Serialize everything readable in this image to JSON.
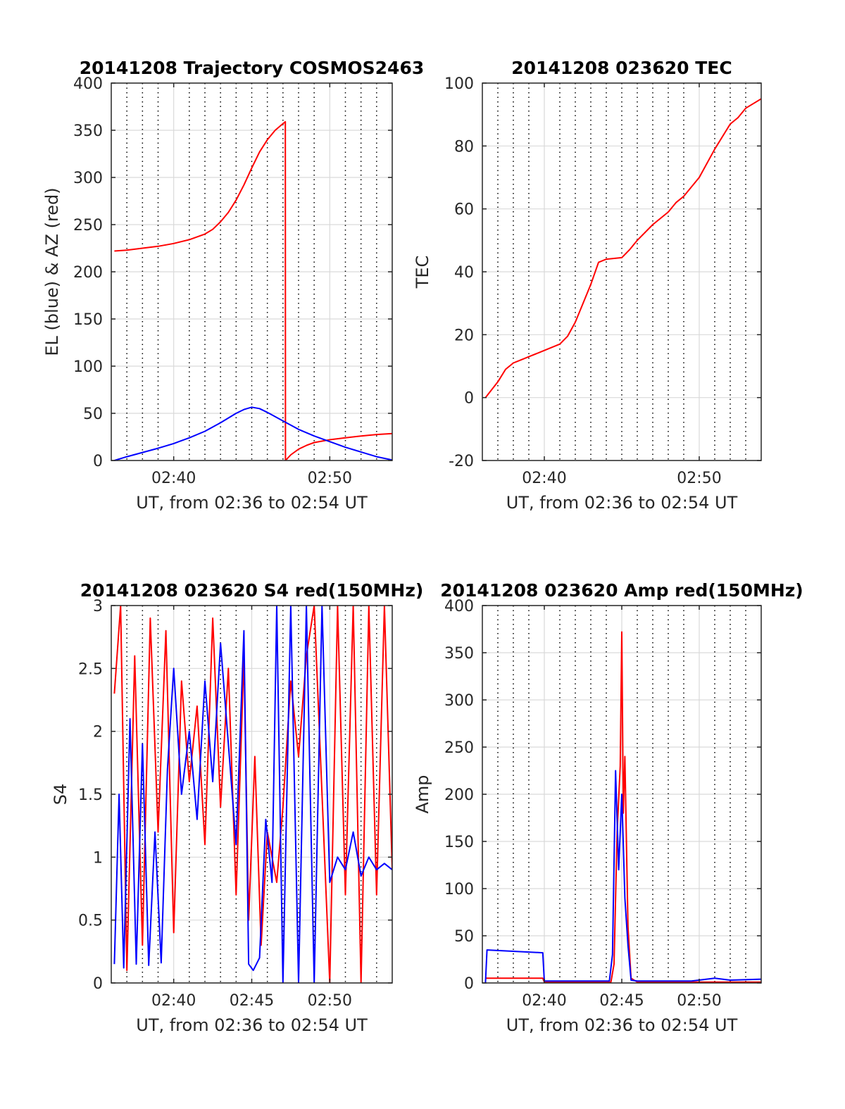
{
  "figure": {
    "background": "#ffffff",
    "colors": {
      "red": "#ff0000",
      "blue": "#0000ff",
      "axis": "#262626",
      "grid_major": "#d9d9d9",
      "grid_minor": "#000000"
    }
  },
  "chart_data": [
    {
      "type": "line",
      "title": "20141208 Trajectory COSMOS2463",
      "xlabel": "UT, from 02:36 to 02:54 UT",
      "ylabel": "EL (blue) & AZ (red)",
      "xlim_min": [
        36,
        54
      ],
      "ylim": [
        0,
        400
      ],
      "xticks": [
        {
          "v": 40,
          "label": "02:40"
        },
        {
          "v": 50,
          "label": "02:50"
        }
      ],
      "yticks": [
        {
          "v": 0,
          "label": "0"
        },
        {
          "v": 50,
          "label": "50"
        },
        {
          "v": 100,
          "label": "100"
        },
        {
          "v": 150,
          "label": "150"
        },
        {
          "v": 200,
          "label": "200"
        },
        {
          "v": 250,
          "label": "250"
        },
        {
          "v": 300,
          "label": "300"
        },
        {
          "v": 350,
          "label": "350"
        },
        {
          "v": 400,
          "label": "400"
        }
      ],
      "grid": "major grid with minor dotted verticals",
      "series": [
        {
          "color": "#ff0000",
          "x": [
            36.2,
            37,
            38,
            39,
            40,
            41,
            42,
            42.5,
            43,
            43.5,
            44,
            44.5,
            45,
            45.5,
            46,
            46.5,
            47,
            47.15,
            47.16,
            47.5,
            48,
            48.5,
            49,
            50,
            51,
            52,
            53,
            54
          ],
          "y": [
            222,
            223,
            225,
            227,
            230,
            234,
            240,
            245,
            253,
            263,
            276,
            292,
            310,
            327,
            340,
            350,
            357,
            359,
            0,
            6,
            12,
            16,
            19,
            22,
            24,
            26,
            27.5,
            28.5
          ]
        },
        {
          "color": "#0000ff",
          "x": [
            36.2,
            37,
            38,
            39,
            40,
            41,
            42,
            43,
            44,
            44.5,
            45,
            45.5,
            46,
            47,
            48,
            49,
            50,
            51,
            52,
            53,
            54
          ],
          "y": [
            0,
            4,
            8.5,
            13,
            18,
            24,
            31,
            40,
            50,
            54,
            56.5,
            55,
            51,
            42,
            33,
            26,
            20,
            14,
            9,
            4,
            0.5
          ]
        }
      ]
    },
    {
      "type": "line",
      "title": "20141208 023620 TEC",
      "xlabel": "UT, from 02:36 to 02:54 UT",
      "ylabel": "TEC",
      "xlim_min": [
        36,
        54
      ],
      "ylim": [
        -20,
        100
      ],
      "xticks": [
        {
          "v": 40,
          "label": "02:40"
        },
        {
          "v": 50,
          "label": "02:50"
        }
      ],
      "yticks": [
        {
          "v": -20,
          "label": "-20"
        },
        {
          "v": 0,
          "label": "0"
        },
        {
          "v": 20,
          "label": "20"
        },
        {
          "v": 40,
          "label": "40"
        },
        {
          "v": 60,
          "label": "60"
        },
        {
          "v": 80,
          "label": "80"
        },
        {
          "v": 100,
          "label": "100"
        }
      ],
      "grid": "major grid with minor dotted verticals",
      "series": [
        {
          "color": "#ff0000",
          "x": [
            36.2,
            37,
            37.5,
            38,
            38.5,
            39,
            40,
            41,
            41.5,
            42,
            42.5,
            43,
            43.5,
            44,
            45,
            45.5,
            46,
            47,
            48,
            48.5,
            49,
            50,
            51,
            52,
            52.5,
            53,
            54
          ],
          "y": [
            0,
            5,
            9,
            11,
            12,
            13,
            15,
            17,
            19.5,
            24,
            30,
            36,
            43,
            44,
            44.5,
            47,
            50,
            55,
            59,
            62,
            64,
            70,
            79,
            87,
            89,
            92,
            95
          ]
        }
      ]
    },
    {
      "type": "line",
      "title": "20141208 023620 S4 red(150MHz)",
      "xlabel": "UT, from 02:36 to 02:54 UT",
      "ylabel": "S4",
      "xlim_min": [
        36,
        54
      ],
      "ylim": [
        0,
        3
      ],
      "xticks": [
        {
          "v": 40,
          "label": "02:40"
        },
        {
          "v": 45,
          "label": "02:45"
        },
        {
          "v": 50,
          "label": "02:50"
        }
      ],
      "yticks": [
        {
          "v": 0,
          "label": "0"
        },
        {
          "v": 0.5,
          "label": "0.5"
        },
        {
          "v": 1,
          "label": "1"
        },
        {
          "v": 1.5,
          "label": "1.5"
        },
        {
          "v": 2,
          "label": "2"
        },
        {
          "v": 2.5,
          "label": "2.5"
        },
        {
          "v": 3,
          "label": "3"
        }
      ],
      "grid": "major grid with minor dotted verticals",
      "series": [
        {
          "color": "#ff0000",
          "x": [
            36.2,
            36.6,
            37,
            37.5,
            38,
            38.5,
            39,
            39.5,
            40,
            40.5,
            41,
            41.5,
            42,
            42.5,
            43,
            43.5,
            44,
            44.5,
            44.8,
            45.2,
            45.6,
            46,
            46.3,
            46.6,
            47,
            47.5,
            48,
            48.5,
            49,
            49.5,
            50,
            50.5,
            51,
            51.5,
            52,
            52.5,
            53,
            53.5,
            54
          ],
          "y": [
            2.3,
            3,
            0.1,
            2.6,
            0.3,
            2.9,
            1.2,
            2.8,
            0.4,
            2.4,
            1.6,
            2.2,
            1.1,
            2.9,
            1.4,
            2.5,
            0.7,
            2.6,
            0.5,
            1.8,
            0.3,
            1.2,
            1.0,
            0.8,
            1.4,
            2.4,
            1.8,
            2.6,
            3.0,
            1.5,
            0.0,
            3.0,
            0.7,
            3.0,
            0.0,
            3.0,
            0.7,
            3.0,
            0.9
          ]
        },
        {
          "color": "#0000ff",
          "x": [
            36.2,
            36.5,
            36.8,
            37.2,
            37.6,
            38,
            38.4,
            38.8,
            39.2,
            39.6,
            40,
            40.5,
            41,
            41.5,
            42,
            42.5,
            43,
            43.5,
            44,
            44.5,
            44.8,
            45.1,
            45.5,
            45.9,
            46.3,
            46.6,
            47,
            47.5,
            48,
            48.5,
            49,
            49.5,
            50,
            50.5,
            51,
            51.5,
            52,
            52.5,
            53,
            53.5,
            54
          ],
          "y": [
            0.15,
            1.5,
            0.12,
            2.1,
            0.15,
            1.9,
            0.14,
            1.2,
            0.16,
            1.7,
            2.5,
            1.5,
            2.0,
            1.3,
            2.4,
            1.6,
            2.7,
            1.9,
            1.1,
            2.8,
            0.15,
            0.1,
            0.2,
            1.3,
            0.8,
            3.0,
            0.0,
            3.0,
            0.0,
            3.0,
            0.0,
            3.0,
            0.8,
            1.0,
            0.9,
            1.2,
            0.85,
            1.0,
            0.9,
            0.95,
            0.9
          ]
        }
      ]
    },
    {
      "type": "line",
      "title": "20141208 023620 Amp red(150MHz)",
      "xlabel": "UT, from 02:36 to 02:54 UT",
      "ylabel": "Amp",
      "xlim_min": [
        36,
        54
      ],
      "ylim": [
        0,
        400
      ],
      "xticks": [
        {
          "v": 40,
          "label": "02:40"
        },
        {
          "v": 45,
          "label": "02:45"
        },
        {
          "v": 50,
          "label": "02:50"
        }
      ],
      "yticks": [
        {
          "v": 0,
          "label": "0"
        },
        {
          "v": 50,
          "label": "50"
        },
        {
          "v": 100,
          "label": "100"
        },
        {
          "v": 150,
          "label": "150"
        },
        {
          "v": 200,
          "label": "200"
        },
        {
          "v": 250,
          "label": "250"
        },
        {
          "v": 300,
          "label": "300"
        },
        {
          "v": 350,
          "label": "350"
        },
        {
          "v": 400,
          "label": "400"
        }
      ],
      "grid": "major grid with minor dotted verticals",
      "series": [
        {
          "color": "#ff0000",
          "x": [
            36.2,
            39.9,
            40,
            44.3,
            44.5,
            44.7,
            44.9,
            45.0,
            45.1,
            45.2,
            45.4,
            45.6,
            46,
            50,
            54
          ],
          "y": [
            5,
            5,
            1,
            1,
            20,
            160,
            230,
            372,
            180,
            240,
            60,
            5,
            1,
            1,
            1
          ]
        },
        {
          "color": "#0000ff",
          "x": [
            36.2,
            36.3,
            39.9,
            40,
            44.2,
            44.4,
            44.6,
            44.8,
            45.0,
            45.2,
            45.4,
            45.6,
            46,
            49.5,
            51,
            52,
            54
          ],
          "y": [
            0,
            35,
            32,
            2,
            2,
            30,
            225,
            120,
            200,
            90,
            40,
            3,
            2,
            2,
            5,
            3,
            4
          ]
        }
      ]
    }
  ]
}
